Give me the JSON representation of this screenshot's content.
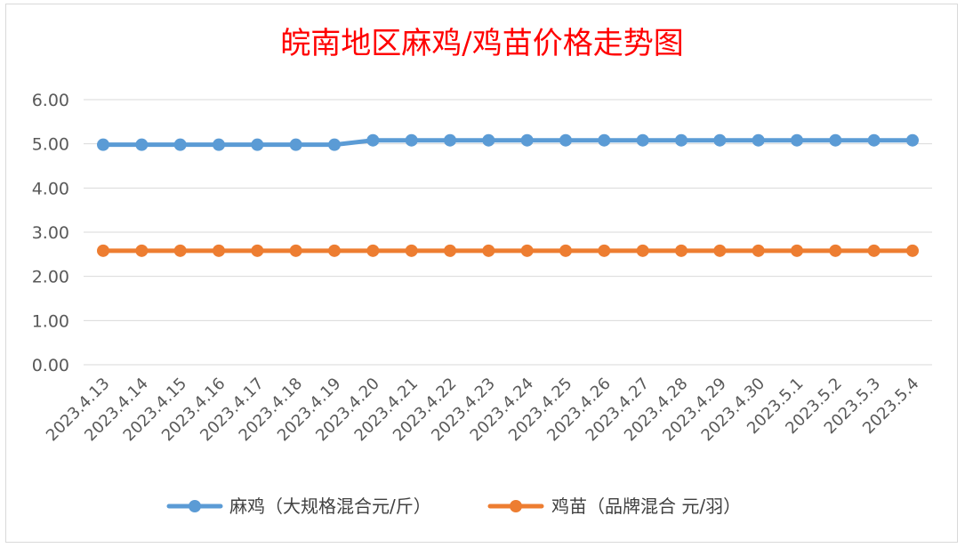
{
  "chart_data": {
    "type": "line",
    "title": "皖南地区麻鸡/鸡苗价格走势图",
    "xlabel": "",
    "ylabel": "",
    "categories": [
      "2023.4.13",
      "2023.4.14",
      "2023.4.15",
      "2023.4.16",
      "2023.4.17",
      "2023.4.18",
      "2023.4.19",
      "2023.4.20",
      "2023.4.21",
      "2023.4.22",
      "2023.4.23",
      "2023.4.24",
      "2023.4.25",
      "2023.4.26",
      "2023.4.27",
      "2023.4.28",
      "2023.4.29",
      "2023.4.30",
      "2023.5.1",
      "2023.5.2",
      "2023.5.3",
      "2023.5.4"
    ],
    "yticks": [
      "0.00",
      "1.00",
      "2.00",
      "3.00",
      "4.00",
      "5.00",
      "6.00"
    ],
    "ylim": [
      0,
      6
    ],
    "grid": true,
    "legend_position": "bottom",
    "series": [
      {
        "name": "麻鸡（大规格混合元/斤）",
        "color": "#5b9bd5",
        "values": [
          4.98,
          4.98,
          4.98,
          4.98,
          4.98,
          4.98,
          4.98,
          5.08,
          5.08,
          5.08,
          5.08,
          5.08,
          5.08,
          5.08,
          5.08,
          5.08,
          5.08,
          5.08,
          5.08,
          5.08,
          5.08,
          5.08
        ]
      },
      {
        "name": "鸡苗（品牌混合 元/羽）",
        "color": "#ed7d31",
        "values": [
          2.58,
          2.58,
          2.58,
          2.58,
          2.58,
          2.58,
          2.58,
          2.58,
          2.58,
          2.58,
          2.58,
          2.58,
          2.58,
          2.58,
          2.58,
          2.58,
          2.58,
          2.58,
          2.58,
          2.58,
          2.58,
          2.58
        ]
      }
    ]
  }
}
